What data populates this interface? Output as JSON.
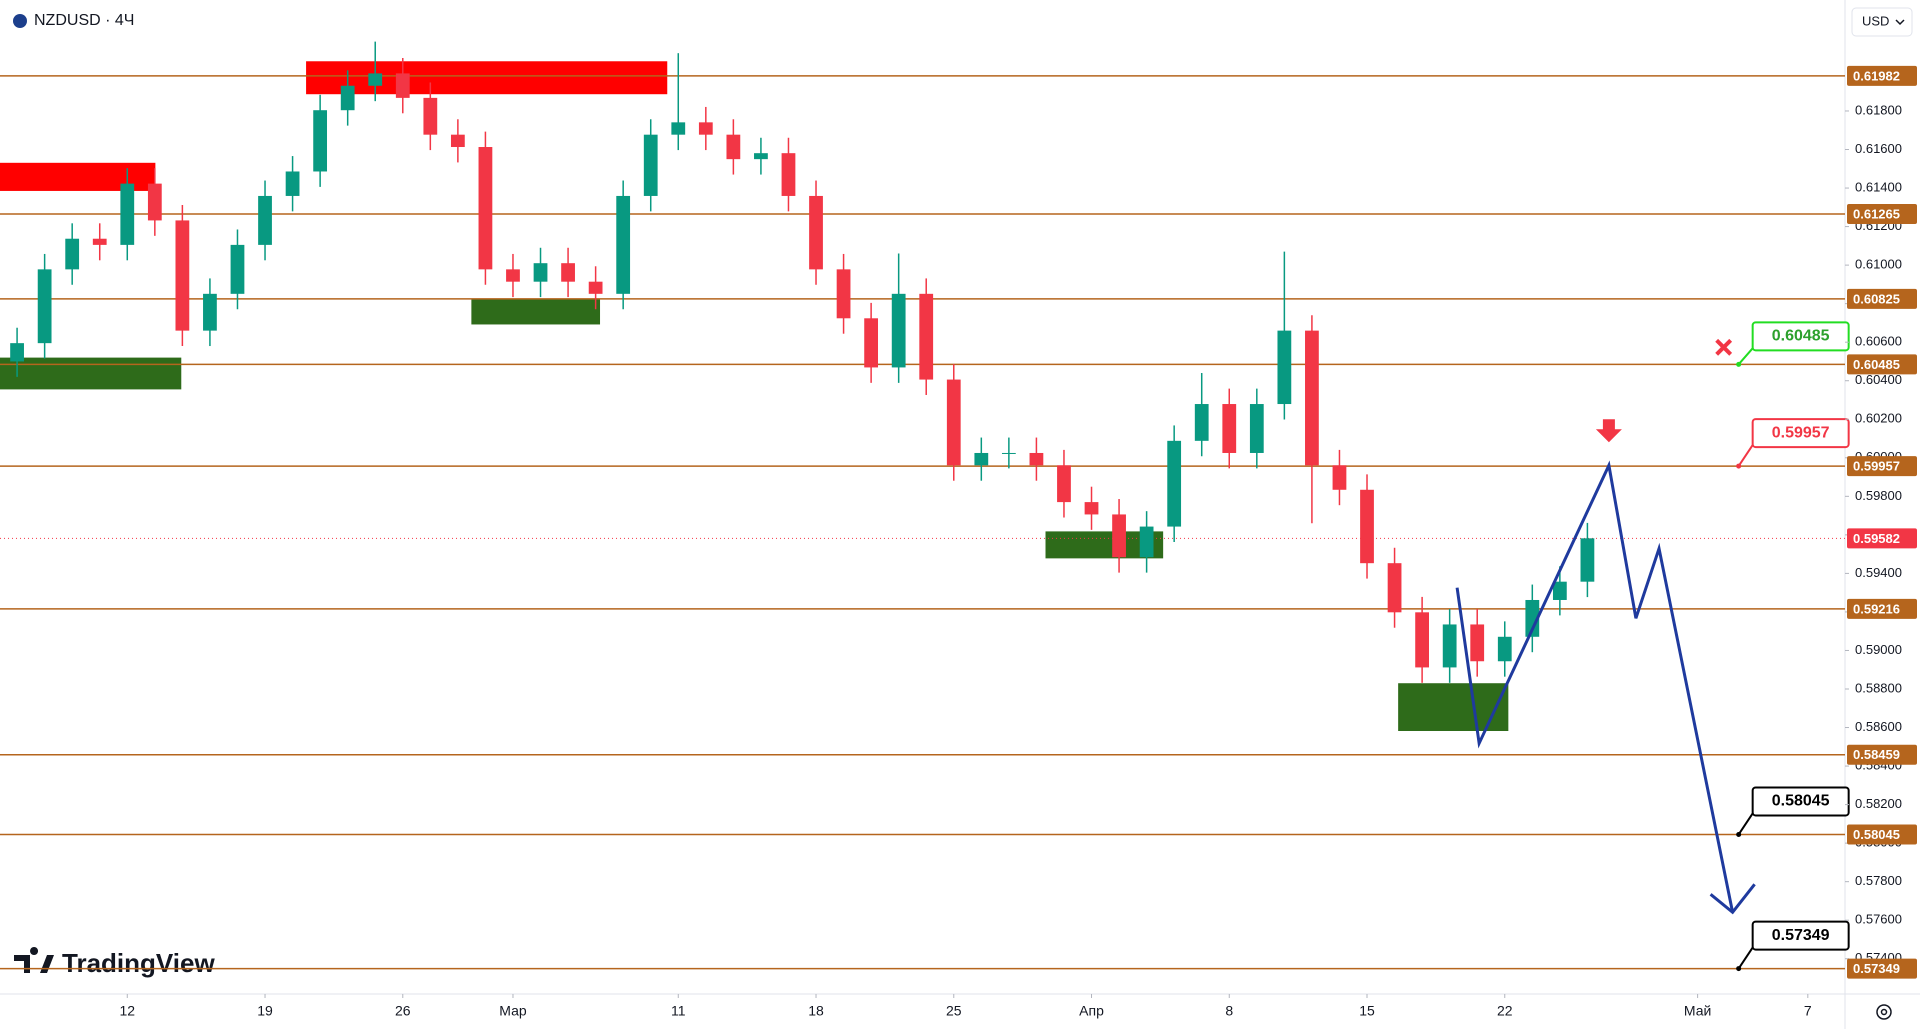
{
  "chart_data": {
    "type": "candlestick",
    "title": "NZDUSD · 4Ч",
    "currency": "USD",
    "brand": "TradingView",
    "xlim": [
      -4.62,
      62.35
    ],
    "xticks": [
      {
        "value": 0,
        "label": "12"
      },
      {
        "value": 5,
        "label": "19"
      },
      {
        "value": 10,
        "label": "26"
      },
      {
        "value": 14,
        "label": "Мар"
      },
      {
        "value": 20,
        "label": "11"
      },
      {
        "value": 25,
        "label": "18"
      },
      {
        "value": 30,
        "label": "25"
      },
      {
        "value": 35,
        "label": "Апр"
      },
      {
        "value": 40,
        "label": "8"
      },
      {
        "value": 45,
        "label": "15"
      },
      {
        "value": 50,
        "label": "22"
      },
      {
        "value": 57,
        "label": "Май"
      },
      {
        "value": 61,
        "label": "7"
      }
    ],
    "ylim": [
      0.57217,
      0.62376
    ],
    "yticks": [
      {
        "value": 0.574,
        "label": "0.57400"
      },
      {
        "value": 0.576,
        "label": "0.57600"
      },
      {
        "value": 0.578,
        "label": "0.57800"
      },
      {
        "value": 0.58,
        "label": "0.58000"
      },
      {
        "value": 0.582,
        "label": "0.58200"
      },
      {
        "value": 0.584,
        "label": "0.58400"
      },
      {
        "value": 0.586,
        "label": "0.58600"
      },
      {
        "value": 0.588,
        "label": "0.58800"
      },
      {
        "value": 0.59,
        "label": "0.59000"
      },
      {
        "value": 0.592,
        "label": "0.59200"
      },
      {
        "value": 0.594,
        "label": "0.59400"
      },
      {
        "value": 0.596,
        "label": "0.59600"
      },
      {
        "value": 0.598,
        "label": "0.59800"
      },
      {
        "value": 0.6,
        "label": "0.60000"
      },
      {
        "value": 0.602,
        "label": "0.60200"
      },
      {
        "value": 0.604,
        "label": "0.60400"
      },
      {
        "value": 0.606,
        "label": "0.60600"
      },
      {
        "value": 0.608,
        "label": "0.60800"
      },
      {
        "value": 0.61,
        "label": "0.61000"
      },
      {
        "value": 0.612,
        "label": "0.61200"
      },
      {
        "value": 0.614,
        "label": "0.61400"
      },
      {
        "value": 0.616,
        "label": "0.61600"
      },
      {
        "value": 0.618,
        "label": "0.61800"
      }
    ],
    "up_color": "#089981",
    "down_color": "#f23645",
    "x": [
      -4,
      -3,
      -2,
      -1,
      0,
      1,
      2,
      3,
      4,
      5,
      6,
      7,
      8,
      9,
      10,
      11,
      12,
      13,
      14,
      15,
      16,
      17,
      18,
      19,
      20,
      21,
      22,
      23,
      24,
      25,
      26,
      27,
      28,
      29,
      30,
      31,
      32,
      33,
      34,
      35,
      36,
      37,
      38,
      39,
      40,
      41,
      42,
      43,
      44,
      45,
      46,
      47,
      48,
      49,
      50,
      51,
      52,
      53
    ],
    "open": [
      0.605,
      0.60595,
      0.60978,
      0.61137,
      0.61105,
      0.61423,
      0.61232,
      0.6066,
      0.60851,
      0.61105,
      0.61359,
      0.61486,
      0.61804,
      0.61931,
      0.61995,
      0.61868,
      0.61677,
      0.61613,
      0.60978,
      0.60914,
      0.6101,
      0.60914,
      0.60851,
      0.61359,
      0.61677,
      0.61741,
      0.61677,
      0.6155,
      0.61581,
      0.61359,
      0.60978,
      0.60724,
      0.60469,
      0.60851,
      0.60406,
      0.59961,
      0.60025,
      0.60025,
      0.59961,
      0.5977,
      0.59706,
      0.59484,
      0.59643,
      0.60088,
      0.60279,
      0.60025,
      0.60279,
      0.6066,
      0.59961,
      0.59834,
      0.59453,
      0.59198,
      0.58912,
      0.59135,
      0.58944,
      0.59071,
      0.59262,
      0.59357
    ],
    "high": [
      0.60675,
      0.61058,
      0.61217,
      0.61217,
      0.61503,
      0.61503,
      0.61312,
      0.60931,
      0.61185,
      0.61439,
      0.61566,
      0.61884,
      0.62011,
      0.6216,
      0.62075,
      0.61948,
      0.61757,
      0.61693,
      0.61058,
      0.6109,
      0.6109,
      0.60994,
      0.61439,
      0.61757,
      0.621,
      0.61821,
      0.61757,
      0.61661,
      0.61661,
      0.61439,
      0.61058,
      0.60804,
      0.6106,
      0.60931,
      0.60486,
      0.60105,
      0.60105,
      0.60105,
      0.60041,
      0.5985,
      0.59786,
      0.59723,
      0.60168,
      0.6044,
      0.60359,
      0.60359,
      0.6107,
      0.6074,
      0.60041,
      0.59914,
      0.59533,
      0.59278,
      0.59215,
      0.59215,
      0.59151,
      0.59342,
      0.59437,
      0.59662
    ],
    "low": [
      0.6042,
      0.60515,
      0.60898,
      0.61025,
      0.61025,
      0.61152,
      0.6058,
      0.6058,
      0.60771,
      0.61025,
      0.61279,
      0.61406,
      0.61724,
      0.61851,
      0.61788,
      0.61597,
      0.61533,
      0.60898,
      0.60834,
      0.60834,
      0.60834,
      0.60771,
      0.60771,
      0.61279,
      0.61597,
      0.61597,
      0.6147,
      0.6147,
      0.61279,
      0.60898,
      0.60644,
      0.60389,
      0.60389,
      0.60326,
      0.59881,
      0.59881,
      0.59945,
      0.59881,
      0.5969,
      0.59626,
      0.59404,
      0.59404,
      0.59563,
      0.60008,
      0.59945,
      0.59945,
      0.60199,
      0.5966,
      0.59754,
      0.59373,
      0.59118,
      0.58832,
      0.58832,
      0.58864,
      0.58864,
      0.58991,
      0.59182,
      0.59277
    ],
    "close": [
      0.60595,
      0.60978,
      0.61137,
      0.61105,
      0.61423,
      0.61232,
      0.6066,
      0.60851,
      0.61105,
      0.61359,
      0.61486,
      0.61804,
      0.61931,
      0.61995,
      0.61868,
      0.61677,
      0.61613,
      0.60978,
      0.60914,
      0.6101,
      0.60914,
      0.60851,
      0.61359,
      0.61677,
      0.61741,
      0.61677,
      0.6155,
      0.61581,
      0.61359,
      0.60978,
      0.60724,
      0.60469,
      0.60851,
      0.60406,
      0.59961,
      0.60025,
      0.60025,
      0.59961,
      0.5977,
      0.59706,
      0.59484,
      0.59643,
      0.60088,
      0.60279,
      0.60025,
      0.60279,
      0.6066,
      0.59961,
      0.59834,
      0.59453,
      0.59198,
      0.58912,
      0.59135,
      0.58944,
      0.59071,
      0.59262,
      0.59357,
      0.59582
    ],
    "levels": [
      0.61982,
      0.61265,
      0.60825,
      0.60485,
      0.59957,
      0.59216,
      0.58459,
      0.58045,
      0.57349
    ],
    "level_color": "#b5651d",
    "last_price": 0.59582,
    "last_color": "#f23645",
    "zones": [
      {
        "x": [
          6.49,
          19.6
        ],
        "y": [
          0.61887,
          0.62058
        ],
        "color": "#ff0000"
      },
      {
        "x": [
          -4.62,
          1.02
        ],
        "y": [
          0.61385,
          0.61531
        ],
        "color": "#ff0000"
      },
      {
        "x": [
          -4.62,
          1.96
        ],
        "y": [
          0.60355,
          0.6052
        ],
        "color": "#2e6b1a"
      },
      {
        "x": [
          12.49,
          17.16
        ],
        "y": [
          0.60692,
          0.60825
        ],
        "color": "#2e6b1a"
      },
      {
        "x": [
          33.33,
          37.6
        ],
        "y": [
          0.59478,
          0.59618
        ],
        "color": "#2e6b1a"
      },
      {
        "x": [
          46.13,
          50.13
        ],
        "y": [
          0.58582,
          0.5883
        ],
        "color": "#2e6b1a"
      }
    ],
    "projection": {
      "x": [
        48.27,
        49.07,
        53.78,
        54.76,
        55.6,
        58.27
      ],
      "values": [
        0.59326,
        0.58518,
        0.59961,
        0.59167,
        0.59529,
        0.57641
      ],
      "color": "#1f3a9e"
    },
    "callouts": [
      {
        "value": 0.60485,
        "color": "#22dd22"
      },
      {
        "value": 0.59957,
        "color": "#f23645"
      },
      {
        "value": 0.58045,
        "color": "#000000"
      },
      {
        "value": 0.57349,
        "color": "#000000"
      }
    ]
  }
}
